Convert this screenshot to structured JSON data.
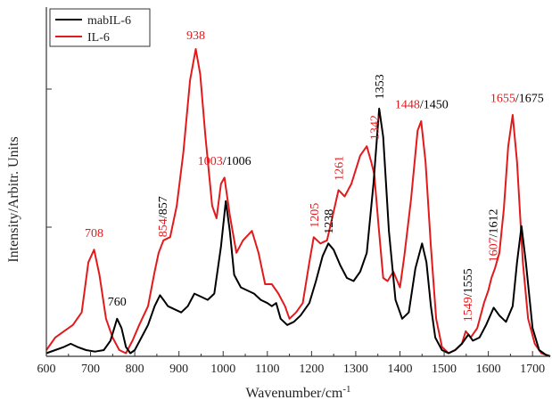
{
  "chart_data": {
    "type": "line",
    "xlabel": "Wavenumber/cm",
    "xlabel_sup": "-1",
    "ylabel": "Intensity/Arbitr. Units",
    "xlim": [
      600,
      1740
    ],
    "ylim": [
      0,
      1.0
    ],
    "x_ticks": [
      "600",
      "700",
      "800",
      "900",
      "1000",
      "1100",
      "1200",
      "1300",
      "1400",
      "1500",
      "1600",
      "1700"
    ],
    "legend": {
      "position": "top-left",
      "entries": [
        "mabIL-6",
        "IL-6"
      ]
    },
    "series": [
      {
        "name": "mabIL-6",
        "color": "#000000",
        "points": [
          [
            600,
            0.01
          ],
          [
            620,
            0.02
          ],
          [
            640,
            0.03
          ],
          [
            655,
            0.04
          ],
          [
            670,
            0.03
          ],
          [
            690,
            0.02
          ],
          [
            710,
            0.015
          ],
          [
            730,
            0.02
          ],
          [
            745,
            0.05
          ],
          [
            760,
            0.12
          ],
          [
            770,
            0.09
          ],
          [
            780,
            0.03
          ],
          [
            790,
            0.01
          ],
          [
            800,
            0.02
          ],
          [
            815,
            0.06
          ],
          [
            830,
            0.1
          ],
          [
            845,
            0.16
          ],
          [
            857,
            0.195
          ],
          [
            865,
            0.18
          ],
          [
            875,
            0.16
          ],
          [
            890,
            0.15
          ],
          [
            905,
            0.14
          ],
          [
            920,
            0.16
          ],
          [
            935,
            0.2
          ],
          [
            950,
            0.19
          ],
          [
            965,
            0.18
          ],
          [
            980,
            0.2
          ],
          [
            995,
            0.35
          ],
          [
            1006,
            0.495
          ],
          [
            1015,
            0.4
          ],
          [
            1025,
            0.26
          ],
          [
            1040,
            0.22
          ],
          [
            1055,
            0.21
          ],
          [
            1070,
            0.2
          ],
          [
            1085,
            0.18
          ],
          [
            1100,
            0.17
          ],
          [
            1110,
            0.16
          ],
          [
            1120,
            0.17
          ],
          [
            1130,
            0.12
          ],
          [
            1145,
            0.1
          ],
          [
            1160,
            0.11
          ],
          [
            1175,
            0.13
          ],
          [
            1195,
            0.17
          ],
          [
            1210,
            0.24
          ],
          [
            1225,
            0.32
          ],
          [
            1238,
            0.36
          ],
          [
            1250,
            0.34
          ],
          [
            1265,
            0.29
          ],
          [
            1280,
            0.25
          ],
          [
            1295,
            0.24
          ],
          [
            1310,
            0.27
          ],
          [
            1325,
            0.33
          ],
          [
            1340,
            0.55
          ],
          [
            1353,
            0.79
          ],
          [
            1362,
            0.7
          ],
          [
            1375,
            0.4
          ],
          [
            1390,
            0.18
          ],
          [
            1405,
            0.12
          ],
          [
            1420,
            0.14
          ],
          [
            1435,
            0.28
          ],
          [
            1450,
            0.36
          ],
          [
            1460,
            0.3
          ],
          [
            1470,
            0.16
          ],
          [
            1480,
            0.06
          ],
          [
            1495,
            0.02
          ],
          [
            1510,
            0.01
          ],
          [
            1525,
            0.02
          ],
          [
            1540,
            0.04
          ],
          [
            1555,
            0.07
          ],
          [
            1565,
            0.05
          ],
          [
            1580,
            0.06
          ],
          [
            1595,
            0.1
          ],
          [
            1612,
            0.155
          ],
          [
            1625,
            0.13
          ],
          [
            1640,
            0.11
          ],
          [
            1655,
            0.16
          ],
          [
            1665,
            0.3
          ],
          [
            1675,
            0.415
          ],
          [
            1685,
            0.3
          ],
          [
            1700,
            0.09
          ],
          [
            1715,
            0.02
          ],
          [
            1730,
            0.005
          ],
          [
            1740,
            0.0
          ]
        ]
      },
      {
        "name": "IL-6",
        "color": "#e31a1c",
        "points": [
          [
            600,
            0.02
          ],
          [
            620,
            0.06
          ],
          [
            640,
            0.08
          ],
          [
            660,
            0.1
          ],
          [
            680,
            0.14
          ],
          [
            695,
            0.3
          ],
          [
            708,
            0.34
          ],
          [
            720,
            0.26
          ],
          [
            735,
            0.12
          ],
          [
            750,
            0.06
          ],
          [
            765,
            0.02
          ],
          [
            780,
            0.01
          ],
          [
            795,
            0.05
          ],
          [
            810,
            0.1
          ],
          [
            830,
            0.16
          ],
          [
            845,
            0.27
          ],
          [
            854,
            0.33
          ],
          [
            865,
            0.37
          ],
          [
            880,
            0.38
          ],
          [
            895,
            0.48
          ],
          [
            910,
            0.65
          ],
          [
            925,
            0.88
          ],
          [
            938,
            0.98
          ],
          [
            948,
            0.9
          ],
          [
            960,
            0.7
          ],
          [
            975,
            0.48
          ],
          [
            985,
            0.44
          ],
          [
            995,
            0.55
          ],
          [
            1003,
            0.57
          ],
          [
            1015,
            0.45
          ],
          [
            1030,
            0.33
          ],
          [
            1045,
            0.37
          ],
          [
            1065,
            0.4
          ],
          [
            1080,
            0.33
          ],
          [
            1095,
            0.23
          ],
          [
            1110,
            0.23
          ],
          [
            1125,
            0.2
          ],
          [
            1140,
            0.16
          ],
          [
            1150,
            0.12
          ],
          [
            1165,
            0.14
          ],
          [
            1180,
            0.17
          ],
          [
            1195,
            0.3
          ],
          [
            1205,
            0.38
          ],
          [
            1220,
            0.36
          ],
          [
            1235,
            0.37
          ],
          [
            1248,
            0.45
          ],
          [
            1261,
            0.53
          ],
          [
            1275,
            0.51
          ],
          [
            1290,
            0.55
          ],
          [
            1310,
            0.64
          ],
          [
            1325,
            0.67
          ],
          [
            1335,
            0.62
          ],
          [
            1342,
            0.58
          ],
          [
            1352,
            0.41
          ],
          [
            1362,
            0.25
          ],
          [
            1372,
            0.24
          ],
          [
            1385,
            0.27
          ],
          [
            1400,
            0.22
          ],
          [
            1410,
            0.32
          ],
          [
            1425,
            0.5
          ],
          [
            1440,
            0.72
          ],
          [
            1448,
            0.75
          ],
          [
            1458,
            0.62
          ],
          [
            1470,
            0.35
          ],
          [
            1482,
            0.12
          ],
          [
            1495,
            0.03
          ],
          [
            1510,
            0.01
          ],
          [
            1525,
            0.02
          ],
          [
            1540,
            0.04
          ],
          [
            1549,
            0.08
          ],
          [
            1560,
            0.06
          ],
          [
            1575,
            0.09
          ],
          [
            1590,
            0.17
          ],
          [
            1600,
            0.21
          ],
          [
            1607,
            0.25
          ],
          [
            1615,
            0.28
          ],
          [
            1625,
            0.33
          ],
          [
            1635,
            0.47
          ],
          [
            1645,
            0.67
          ],
          [
            1655,
            0.77
          ],
          [
            1665,
            0.62
          ],
          [
            1678,
            0.3
          ],
          [
            1690,
            0.12
          ],
          [
            1705,
            0.04
          ],
          [
            1720,
            0.01
          ],
          [
            1740,
            0.0
          ]
        ]
      }
    ],
    "annotations": [
      {
        "x": 708,
        "y": 0.37,
        "parts": [
          {
            "text": "708",
            "color": "#e31a1c"
          }
        ]
      },
      {
        "x": 760,
        "y": 0.15,
        "parts": [
          {
            "text": "760",
            "color": "#000000"
          }
        ]
      },
      {
        "x": 938,
        "y": 1.0,
        "parts": [
          {
            "text": "938",
            "color": "#e31a1c"
          }
        ]
      },
      {
        "x": 1003,
        "y": 0.6,
        "parts": [
          {
            "text": "1003",
            "color": "#e31a1c"
          },
          {
            "text": "/1006",
            "color": "#000000"
          }
        ]
      },
      {
        "x": 1449,
        "y": 0.78,
        "parts": [
          {
            "text": "1448",
            "color": "#e31a1c"
          },
          {
            "text": "/1450",
            "color": "#000000"
          }
        ]
      },
      {
        "x": 1665,
        "y": 0.8,
        "parts": [
          {
            "text": "1655",
            "color": "#e31a1c"
          },
          {
            "text": "/1675",
            "color": "#000000"
          }
        ]
      },
      {
        "x": 862,
        "y": 0.38,
        "rotate": -90,
        "parts": [
          {
            "text": "854",
            "color": "#e31a1c"
          },
          {
            "text": "/857",
            "color": "#000000"
          }
        ]
      },
      {
        "x": 1205,
        "y": 0.41,
        "rotate": -90,
        "parts": [
          {
            "text": "1205",
            "color": "#e31a1c"
          }
        ]
      },
      {
        "x": 1238,
        "y": 0.39,
        "rotate": -90,
        "parts": [
          {
            "text": "1238",
            "color": "#000000"
          }
        ]
      },
      {
        "x": 1261,
        "y": 0.56,
        "rotate": -90,
        "parts": [
          {
            "text": "1261",
            "color": "#e31a1c"
          }
        ]
      },
      {
        "x": 1342,
        "y": 0.69,
        "rotate": -90,
        "parts": [
          {
            "text": "1342",
            "color": "#e31a1c"
          }
        ]
      },
      {
        "x": 1353,
        "y": 0.82,
        "rotate": -90,
        "parts": [
          {
            "text": "1353",
            "color": "#000000"
          }
        ]
      },
      {
        "x": 1552,
        "y": 0.11,
        "rotate": -90,
        "parts": [
          {
            "text": "1549",
            "color": "#e31a1c"
          },
          {
            "text": "/1555",
            "color": "#000000"
          }
        ]
      },
      {
        "x": 1610,
        "y": 0.3,
        "rotate": -90,
        "parts": [
          {
            "text": "1607",
            "color": "#e31a1c"
          },
          {
            "text": "/1612",
            "color": "#000000"
          }
        ]
      }
    ]
  }
}
